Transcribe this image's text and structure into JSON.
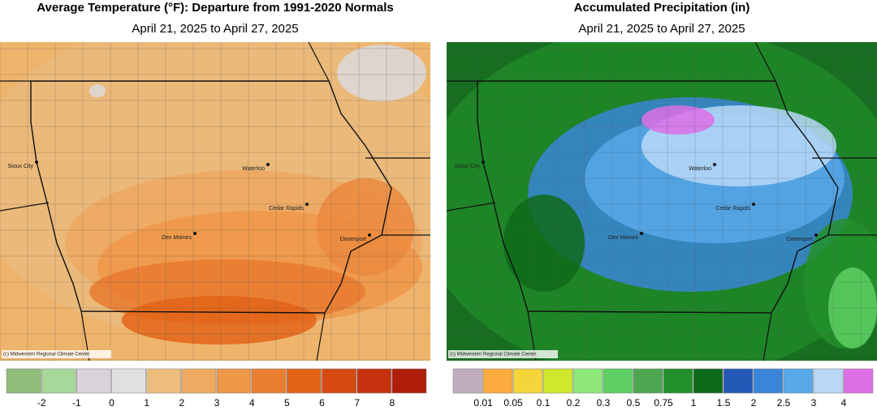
{
  "maps": [
    {
      "title": "Average Temperature (°F): Departure from 1991-2020 Normals",
      "subtitle": "April 21, 2025 to April 27, 2025",
      "cities": [
        "Sioux City",
        "Waterloo",
        "Cedar Rapids",
        "Des Moines",
        "Davenport"
      ],
      "credit": "(c) Midwestern Regional Climate Center",
      "legend": {
        "colors": [
          "#8fbf7a",
          "#a8d79a",
          "#d9d3d9",
          "#e2dfe2",
          "#ecbd7c",
          "#efaa62",
          "#ee9748",
          "#eb7f30",
          "#e36418",
          "#d54a0f",
          "#c63210",
          "#b01e0a"
        ],
        "labels": [
          "-2",
          "-1",
          "0",
          "1",
          "2",
          "3",
          "4",
          "5",
          "6",
          "7",
          "8"
        ]
      }
    },
    {
      "title": "Accumulated Precipitation (in)",
      "subtitle": "April 21, 2025 to April 27, 2025",
      "cities": [
        "Sioux City",
        "Waterloo",
        "Cedar Rapids",
        "Des Moines",
        "Davenport"
      ],
      "credit": "(c) Midwestern Regional Climate Center",
      "legend": {
        "colors": [
          "#c0aec0",
          "#fbaa3e",
          "#f5d53c",
          "#cfe82b",
          "#8fe87a",
          "#5ed063",
          "#4ea650",
          "#22902a",
          "#0e6a1a",
          "#2559b8",
          "#3a85d8",
          "#58a8ea",
          "#b9d8f8",
          "#dd6fe6"
        ],
        "labels": [
          "0.01",
          "0.05",
          "0.1",
          "0.2",
          "0.3",
          "0.5",
          "0.75",
          "1",
          "1.5",
          "2",
          "2.5",
          "3",
          "4"
        ]
      }
    }
  ]
}
